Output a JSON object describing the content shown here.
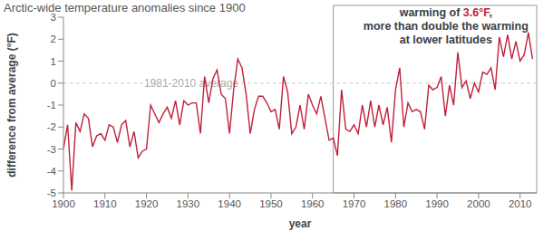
{
  "chart_data": {
    "type": "line",
    "title": "Arctic-wide temperature anomalies since 1900",
    "xlabel": "year",
    "ylabel": "difference from average (°F)",
    "color": "#c0203a",
    "grid": false,
    "xlim": [
      1900,
      2014
    ],
    "xticks": [
      1900,
      1910,
      1920,
      1930,
      1940,
      1950,
      1960,
      1970,
      1980,
      1990,
      2000,
      2010
    ],
    "ylim": [
      -5,
      3
    ],
    "yticks": [
      -5,
      -4,
      -3,
      -2,
      -1,
      0,
      1,
      2,
      3
    ],
    "x": [
      1900,
      1901,
      1902,
      1903,
      1904,
      1905,
      1906,
      1907,
      1908,
      1909,
      1910,
      1911,
      1912,
      1913,
      1914,
      1915,
      1916,
      1917,
      1918,
      1919,
      1920,
      1921,
      1922,
      1923,
      1924,
      1925,
      1926,
      1927,
      1928,
      1929,
      1930,
      1931,
      1932,
      1933,
      1934,
      1935,
      1936,
      1937,
      1938,
      1939,
      1940,
      1941,
      1942,
      1943,
      1944,
      1945,
      1946,
      1947,
      1948,
      1949,
      1950,
      1951,
      1952,
      1953,
      1954,
      1955,
      1956,
      1957,
      1958,
      1959,
      1960,
      1961,
      1962,
      1963,
      1964,
      1965,
      1966,
      1967,
      1968,
      1969,
      1970,
      1971,
      1972,
      1973,
      1974,
      1975,
      1976,
      1977,
      1978,
      1979,
      1980,
      1981,
      1982,
      1983,
      1984,
      1985,
      1986,
      1987,
      1988,
      1989,
      1990,
      1991,
      1992,
      1993,
      1994,
      1995,
      1996,
      1997,
      1998,
      1999,
      2000,
      2001,
      2002,
      2003,
      2004,
      2005,
      2006,
      2007,
      2008,
      2009,
      2010,
      2011,
      2012,
      2013
    ],
    "values": [
      -3.0,
      -1.9,
      -4.9,
      -1.8,
      -2.2,
      -1.4,
      -1.6,
      -2.9,
      -2.4,
      -2.3,
      -2.6,
      -1.9,
      -2.0,
      -2.7,
      -1.9,
      -1.7,
      -2.9,
      -2.2,
      -3.4,
      -3.1,
      -3.0,
      -1.0,
      -1.4,
      -1.8,
      -1.4,
      -1.1,
      -1.6,
      -0.8,
      -1.9,
      -0.8,
      -1.0,
      -0.9,
      -0.9,
      -2.3,
      0.3,
      -0.9,
      0.2,
      0.6,
      -0.5,
      -0.7,
      -2.3,
      -0.3,
      1.1,
      0.7,
      -0.5,
      -2.3,
      -1.2,
      -0.6,
      -0.6,
      -0.9,
      -1.3,
      -1.2,
      -2.1,
      0.3,
      -0.4,
      -2.3,
      -2.0,
      -1.0,
      -2.1,
      -0.5,
      -1.0,
      -1.4,
      -0.6,
      -1.6,
      -2.6,
      -2.5,
      -3.3,
      -0.3,
      -2.1,
      -2.2,
      -1.9,
      -2.3,
      -1.0,
      -2.0,
      -0.8,
      -2.0,
      -1.0,
      -1.9,
      -1.1,
      -2.7,
      -0.3,
      0.7,
      -2.0,
      -0.9,
      -1.3,
      -1.2,
      -1.3,
      -2.1,
      -0.1,
      -0.3,
      -0.2,
      0.3,
      -1.5,
      -0.1,
      -1.0,
      1.4,
      -0.2,
      0.1,
      -0.7,
      0.0,
      -0.4,
      0.5,
      0.4,
      0.7,
      -0.3,
      2.1,
      1.2,
      2.2,
      1.1,
      1.9,
      1.0,
      1.3,
      2.3,
      1.1
    ],
    "reference_line": {
      "y": 0,
      "label": "1981-2010 average",
      "line_style": "dashed"
    },
    "annotation": {
      "lines": [
        "warming of 3.6°F,",
        "more than double the warming",
        "at lower latitudes"
      ],
      "highlight": "3.6°F",
      "x_range": [
        1965,
        2014
      ]
    }
  }
}
